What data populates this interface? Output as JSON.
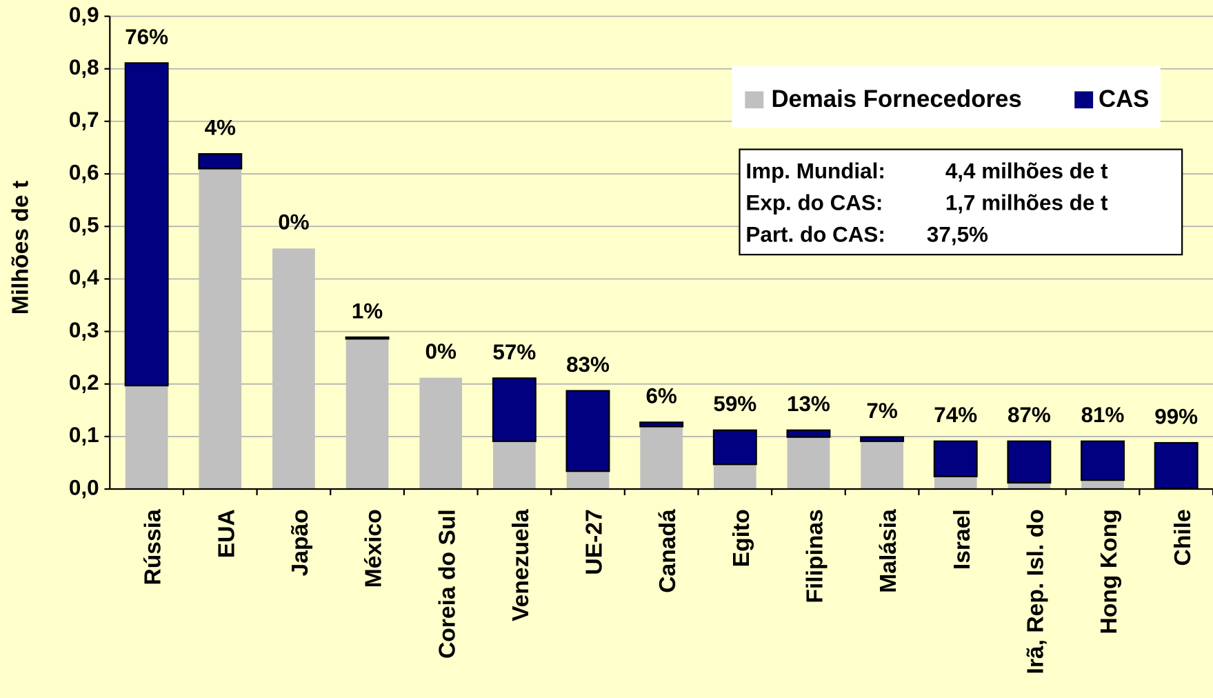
{
  "chart_data": {
    "type": "stacked_bar",
    "y_label": "Milhões de t",
    "categories": [
      "Rússia",
      "EUA",
      "Japão",
      "México",
      "Coreia do Sul",
      "Venezuela",
      "UE-27",
      "Canadá",
      "Egito",
      "Filipinas",
      "Malásia",
      "Israel",
      "Irã, Rep. Isl. do",
      "Hong Kong",
      "Chile"
    ],
    "series": [
      {
        "name": "Demais Fornecedores",
        "color": "#c0c0c0",
        "values": [
          0.197,
          0.61,
          0.458,
          0.286,
          0.212,
          0.091,
          0.034,
          0.119,
          0.047,
          0.099,
          0.091,
          0.024,
          0.012,
          0.017,
          0.001
        ]
      },
      {
        "name": "CAS",
        "color": "#000080",
        "values": [
          0.614,
          0.028,
          0,
          0.003,
          0,
          0.12,
          0.153,
          0.008,
          0.065,
          0.013,
          0.008,
          0.067,
          0.079,
          0.074,
          0.087
        ]
      }
    ],
    "share_labels": [
      "76%",
      "4%",
      "0%",
      "1%",
      "0%",
      "57%",
      "83%",
      "6%",
      "59%",
      "13%",
      "7%",
      "74%",
      "87%",
      "81%",
      "99%"
    ],
    "ylim": [
      0,
      0.9
    ],
    "yticks": [
      {
        "value": 0,
        "label": "0,0"
      },
      {
        "value": 0.1,
        "label": "0,1"
      },
      {
        "value": 0.2,
        "label": "0,2"
      },
      {
        "value": 0.3,
        "label": "0,3"
      },
      {
        "value": 0.4,
        "label": "0,4"
      },
      {
        "value": 0.5,
        "label": "0,5"
      },
      {
        "value": 0.6,
        "label": "0,6"
      },
      {
        "value": 0.7,
        "label": "0,7"
      },
      {
        "value": 0.8,
        "label": "0,8"
      },
      {
        "value": 0.9,
        "label": "0,9"
      }
    ],
    "grid": true,
    "legend": "top-right",
    "info_box": [
      [
        "Imp. Mundial:",
        "4,4  milhões de t"
      ],
      [
        "Exp. do CAS:",
        "1,7  milhões de t"
      ],
      [
        "Part. do CAS:",
        "37,5%"
      ]
    ]
  }
}
